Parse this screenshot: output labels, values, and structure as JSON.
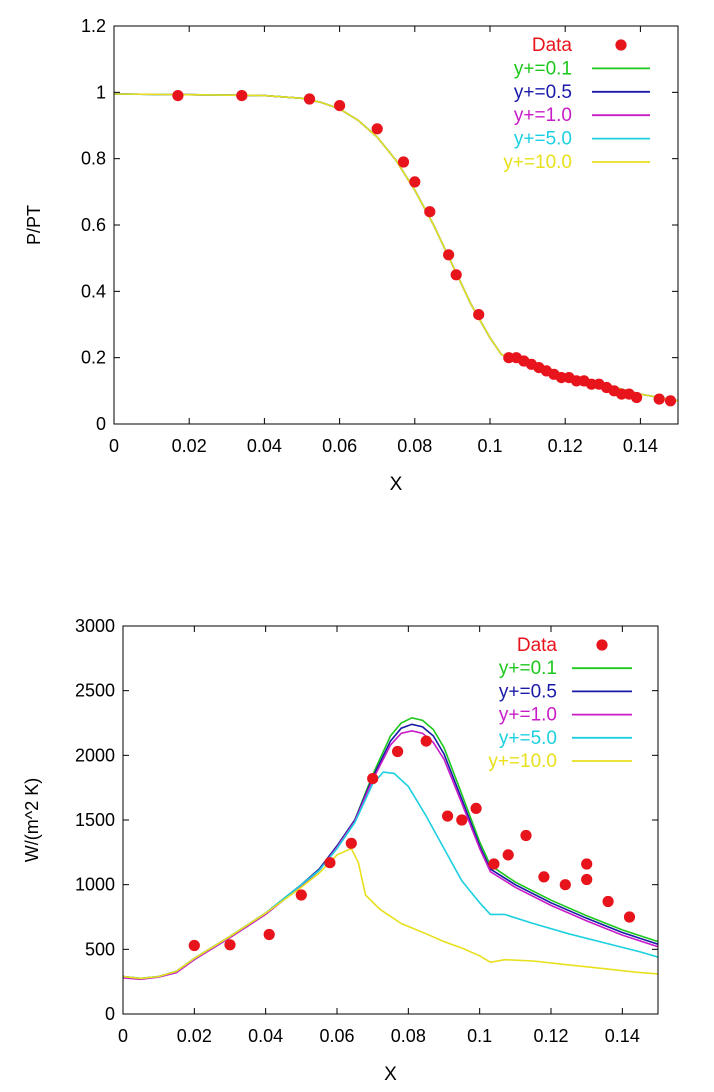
{
  "chart_data": [
    {
      "type": "line",
      "xlabel": "X",
      "ylabel": "P/PT",
      "xlim": [
        0,
        0.15
      ],
      "ylim": [
        0,
        1.2
      ],
      "xticks": [
        "0",
        "0.02",
        "0.04",
        "0.06",
        "0.08",
        "0.1",
        "0.12",
        "0.14"
      ],
      "xtick_values": [
        0,
        0.02,
        0.04,
        0.06,
        0.08,
        0.1,
        0.12,
        0.14
      ],
      "yticks": [
        "0",
        "0.2",
        "0.4",
        "0.6",
        "0.8",
        "1",
        "1.2"
      ],
      "ytick_values": [
        0,
        0.2,
        0.4,
        0.6,
        0.8,
        1.0,
        1.2
      ],
      "grid": false,
      "legend_position": "top-right",
      "points": {
        "name": "Data",
        "color": "#e8141c",
        "x": [
          0.017,
          0.034,
          0.052,
          0.06,
          0.07,
          0.077,
          0.08,
          0.084,
          0.089,
          0.091,
          0.097,
          0.105,
          0.107,
          0.109,
          0.111,
          0.113,
          0.115,
          0.117,
          0.119,
          0.121,
          0.123,
          0.125,
          0.127,
          0.129,
          0.131,
          0.133,
          0.135,
          0.137,
          0.139,
          0.145,
          0.148
        ],
        "y": [
          0.99,
          0.99,
          0.98,
          0.96,
          0.89,
          0.79,
          0.73,
          0.64,
          0.51,
          0.45,
          0.33,
          0.2,
          0.2,
          0.19,
          0.18,
          0.17,
          0.16,
          0.15,
          0.14,
          0.14,
          0.13,
          0.13,
          0.12,
          0.12,
          0.11,
          0.1,
          0.09,
          0.09,
          0.08,
          0.075,
          0.07
        ]
      },
      "series": [
        {
          "name": "y+=0.1",
          "color": "#1cc81c",
          "x": [
            0,
            0.02,
            0.04,
            0.05,
            0.055,
            0.06,
            0.065,
            0.07,
            0.075,
            0.08,
            0.085,
            0.09,
            0.095,
            0.1,
            0.103,
            0.106,
            0.11,
            0.115,
            0.12,
            0.125,
            0.13,
            0.135,
            0.14,
            0.145,
            0.15
          ],
          "y": [
            0.995,
            0.993,
            0.99,
            0.982,
            0.97,
            0.95,
            0.915,
            0.865,
            0.795,
            0.705,
            0.6,
            0.48,
            0.36,
            0.26,
            0.21,
            0.195,
            0.18,
            0.165,
            0.15,
            0.135,
            0.12,
            0.105,
            0.09,
            0.08,
            0.07
          ]
        },
        {
          "name": "y+=0.5",
          "color": "#1a1aa8",
          "x": [
            0,
            0.02,
            0.04,
            0.05,
            0.055,
            0.06,
            0.065,
            0.07,
            0.075,
            0.08,
            0.085,
            0.09,
            0.095,
            0.1,
            0.103,
            0.106,
            0.11,
            0.115,
            0.12,
            0.125,
            0.13,
            0.135,
            0.14,
            0.145,
            0.15
          ],
          "y": [
            0.995,
            0.993,
            0.99,
            0.982,
            0.97,
            0.95,
            0.915,
            0.865,
            0.795,
            0.705,
            0.6,
            0.48,
            0.36,
            0.26,
            0.21,
            0.195,
            0.18,
            0.165,
            0.15,
            0.135,
            0.12,
            0.105,
            0.09,
            0.08,
            0.07
          ]
        },
        {
          "name": "y+=1.0",
          "color": "#c81cc8",
          "x": [
            0,
            0.02,
            0.04,
            0.05,
            0.055,
            0.06,
            0.065,
            0.07,
            0.075,
            0.08,
            0.085,
            0.09,
            0.095,
            0.1,
            0.103,
            0.106,
            0.11,
            0.115,
            0.12,
            0.125,
            0.13,
            0.135,
            0.14,
            0.145,
            0.15
          ],
          "y": [
            0.995,
            0.993,
            0.99,
            0.982,
            0.97,
            0.95,
            0.915,
            0.865,
            0.795,
            0.705,
            0.6,
            0.48,
            0.36,
            0.26,
            0.21,
            0.195,
            0.18,
            0.165,
            0.15,
            0.135,
            0.12,
            0.105,
            0.09,
            0.08,
            0.07
          ]
        },
        {
          "name": "y+=5.0",
          "color": "#1cd0e0",
          "x": [
            0,
            0.02,
            0.04,
            0.05,
            0.055,
            0.06,
            0.065,
            0.07,
            0.075,
            0.08,
            0.085,
            0.09,
            0.095,
            0.1,
            0.103,
            0.106,
            0.11,
            0.115,
            0.12,
            0.125,
            0.13,
            0.135,
            0.14,
            0.145,
            0.15
          ],
          "y": [
            0.995,
            0.993,
            0.99,
            0.982,
            0.97,
            0.95,
            0.915,
            0.865,
            0.795,
            0.705,
            0.6,
            0.48,
            0.36,
            0.26,
            0.21,
            0.195,
            0.18,
            0.165,
            0.15,
            0.135,
            0.12,
            0.105,
            0.09,
            0.08,
            0.07
          ]
        },
        {
          "name": "y+=10.0",
          "color": "#e8e01c",
          "x": [
            0,
            0.02,
            0.04,
            0.05,
            0.055,
            0.06,
            0.065,
            0.07,
            0.075,
            0.08,
            0.085,
            0.09,
            0.095,
            0.1,
            0.103,
            0.106,
            0.11,
            0.115,
            0.12,
            0.125,
            0.13,
            0.135,
            0.14,
            0.145,
            0.15
          ],
          "y": [
            0.995,
            0.993,
            0.99,
            0.982,
            0.97,
            0.95,
            0.915,
            0.865,
            0.795,
            0.705,
            0.6,
            0.48,
            0.36,
            0.26,
            0.21,
            0.195,
            0.18,
            0.165,
            0.15,
            0.135,
            0.12,
            0.105,
            0.09,
            0.08,
            0.07
          ]
        }
      ]
    },
    {
      "type": "line",
      "xlabel": "X",
      "ylabel": "W/(m^2 K)",
      "xlim": [
        0,
        0.15
      ],
      "ylim": [
        0,
        3000
      ],
      "xticks": [
        "0",
        "0.02",
        "0.04",
        "0.06",
        "0.08",
        "0.1",
        "0.12",
        "0.14"
      ],
      "xtick_values": [
        0,
        0.02,
        0.04,
        0.06,
        0.08,
        0.1,
        0.12,
        0.14
      ],
      "yticks": [
        "0",
        "500",
        "1000",
        "1500",
        "2000",
        "2500",
        "3000"
      ],
      "ytick_values": [
        0,
        500,
        1000,
        1500,
        2000,
        2500,
        3000
      ],
      "grid": false,
      "legend_position": "top-right",
      "points": {
        "name": "Data",
        "color": "#e8141c",
        "x": [
          0.02,
          0.03,
          0.041,
          0.05,
          0.058,
          0.064,
          0.07,
          0.077,
          0.085,
          0.091,
          0.095,
          0.099,
          0.104,
          0.108,
          0.113,
          0.118,
          0.124,
          0.13,
          0.13,
          0.136,
          0.142
        ],
        "y": [
          530,
          535,
          615,
          920,
          1170,
          1320,
          1820,
          2030,
          2110,
          1530,
          1500,
          1590,
          1160,
          1230,
          1380,
          1060,
          1000,
          1160,
          1040,
          870,
          750
        ]
      },
      "series": [
        {
          "name": "y+=0.1",
          "color": "#1cc81c",
          "x": [
            0,
            0.005,
            0.01,
            0.015,
            0.02,
            0.03,
            0.04,
            0.05,
            0.055,
            0.06,
            0.065,
            0.07,
            0.075,
            0.078,
            0.081,
            0.084,
            0.087,
            0.09,
            0.095,
            0.1,
            0.103,
            0.11,
            0.12,
            0.13,
            0.14,
            0.15
          ],
          "y": [
            290,
            275,
            290,
            330,
            430,
            600,
            780,
            1000,
            1120,
            1300,
            1500,
            1850,
            2150,
            2250,
            2290,
            2270,
            2200,
            2060,
            1700,
            1330,
            1150,
            1020,
            880,
            760,
            650,
            560
          ]
        },
        {
          "name": "y+=0.5",
          "color": "#1a1aa8",
          "x": [
            0,
            0.005,
            0.01,
            0.015,
            0.02,
            0.03,
            0.04,
            0.05,
            0.055,
            0.06,
            0.065,
            0.07,
            0.075,
            0.078,
            0.081,
            0.084,
            0.087,
            0.09,
            0.095,
            0.1,
            0.103,
            0.11,
            0.12,
            0.13,
            0.14,
            0.15
          ],
          "y": [
            290,
            275,
            290,
            330,
            430,
            600,
            780,
            1000,
            1120,
            1300,
            1500,
            1830,
            2110,
            2210,
            2240,
            2220,
            2150,
            2010,
            1660,
            1300,
            1120,
            1000,
            860,
            740,
            630,
            540
          ]
        },
        {
          "name": "y+=1.0",
          "color": "#c81cc8",
          "x": [
            0,
            0.005,
            0.01,
            0.015,
            0.02,
            0.03,
            0.04,
            0.05,
            0.055,
            0.06,
            0.065,
            0.07,
            0.075,
            0.078,
            0.081,
            0.084,
            0.087,
            0.09,
            0.095,
            0.1,
            0.103,
            0.11,
            0.12,
            0.13,
            0.14,
            0.15
          ],
          "y": [
            280,
            268,
            285,
            320,
            420,
            590,
            770,
            990,
            1110,
            1290,
            1490,
            1810,
            2080,
            2170,
            2190,
            2170,
            2100,
            1970,
            1630,
            1280,
            1100,
            980,
            840,
            720,
            610,
            520
          ]
        },
        {
          "name": "y+=5.0",
          "color": "#1cd0e0",
          "x": [
            0,
            0.005,
            0.01,
            0.015,
            0.02,
            0.03,
            0.04,
            0.05,
            0.055,
            0.06,
            0.065,
            0.07,
            0.073,
            0.076,
            0.08,
            0.085,
            0.09,
            0.095,
            0.1,
            0.103,
            0.107,
            0.115,
            0.125,
            0.135,
            0.145,
            0.15
          ],
          "y": [
            290,
            275,
            290,
            330,
            430,
            600,
            780,
            1000,
            1110,
            1280,
            1480,
            1780,
            1870,
            1860,
            1760,
            1530,
            1280,
            1030,
            860,
            770,
            770,
            700,
            620,
            550,
            480,
            440
          ]
        },
        {
          "name": "y+=10.0",
          "color": "#e8e01c",
          "x": [
            0,
            0.005,
            0.01,
            0.015,
            0.02,
            0.03,
            0.04,
            0.05,
            0.055,
            0.06,
            0.064,
            0.066,
            0.068,
            0.072,
            0.078,
            0.085,
            0.09,
            0.095,
            0.1,
            0.103,
            0.107,
            0.115,
            0.125,
            0.135,
            0.145,
            0.15
          ],
          "y": [
            290,
            275,
            290,
            330,
            430,
            600,
            780,
            980,
            1090,
            1230,
            1280,
            1170,
            920,
            810,
            700,
            620,
            560,
            510,
            450,
            400,
            420,
            410,
            380,
            350,
            320,
            310
          ]
        }
      ]
    }
  ]
}
